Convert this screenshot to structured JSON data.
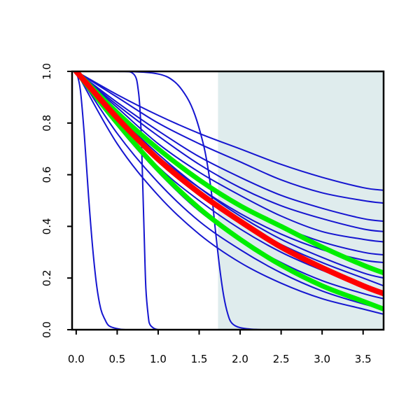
{
  "chart_data": {
    "type": "line",
    "title": "",
    "xlabel": "",
    "ylabel": "",
    "xlim": [
      -0.05,
      3.75
    ],
    "ylim": [
      0.0,
      1.0
    ],
    "x_ticks": [
      "0.0",
      "0.5",
      "1.0",
      "1.5",
      "2.0",
      "2.5",
      "3.0",
      "3.5"
    ],
    "y_ticks": [
      "0.0",
      "0.2",
      "0.4",
      "0.6",
      "0.8",
      "1.0"
    ],
    "grid": false,
    "legend": "none",
    "shaded_region": {
      "x_start": 1.73,
      "x_end": 3.75,
      "color": "#dfeced"
    },
    "colors": {
      "blue": "#1515d0",
      "red": "#ff0000",
      "green": "#00ee00",
      "shade": "#dfeced"
    },
    "series": [
      {
        "color": "#1515d0",
        "x": [
          0,
          0.05,
          0.1,
          0.15,
          0.2,
          0.25,
          0.3,
          0.35,
          0.4,
          0.5,
          0.6,
          0.8
        ],
        "y": [
          1.0,
          0.93,
          0.75,
          0.52,
          0.32,
          0.17,
          0.08,
          0.04,
          0.015,
          0.004,
          0.0,
          0.0
        ]
      },
      {
        "color": "#1515d0",
        "x": [
          0,
          0.5,
          0.7,
          0.76,
          0.79,
          0.81,
          0.83,
          0.85,
          0.88,
          0.9,
          0.95,
          1.0
        ],
        "y": [
          1.0,
          1.0,
          0.99,
          0.92,
          0.78,
          0.58,
          0.36,
          0.16,
          0.05,
          0.02,
          0.005,
          0.0
        ]
      },
      {
        "color": "#1515d0",
        "x": [
          0,
          0.6,
          1.0,
          1.2,
          1.35,
          1.45,
          1.55,
          1.6,
          1.65,
          1.7,
          1.75,
          1.8,
          1.85,
          1.9,
          2.0,
          2.2,
          2.5,
          3.75
        ],
        "y": [
          1.0,
          1.0,
          0.99,
          0.96,
          0.9,
          0.83,
          0.72,
          0.64,
          0.53,
          0.38,
          0.24,
          0.13,
          0.06,
          0.025,
          0.008,
          0.001,
          0.0,
          0.0
        ]
      },
      {
        "color": "#1515d0",
        "x": [
          0,
          0.5,
          1.0,
          1.5,
          2.0,
          2.5,
          3.0,
          3.5,
          3.75
        ],
        "y": [
          1.0,
          0.91,
          0.83,
          0.76,
          0.7,
          0.64,
          0.59,
          0.55,
          0.54
        ]
      },
      {
        "color": "#1515d0",
        "x": [
          0,
          0.5,
          1.0,
          1.5,
          2.0,
          2.5,
          3.0,
          3.5,
          3.75
        ],
        "y": [
          1.0,
          0.9,
          0.8,
          0.72,
          0.65,
          0.58,
          0.53,
          0.5,
          0.49
        ]
      },
      {
        "color": "#1515d0",
        "x": [
          0,
          0.5,
          1.0,
          1.5,
          2.0,
          2.5,
          3.0,
          3.5,
          3.75
        ],
        "y": [
          1.0,
          0.88,
          0.77,
          0.67,
          0.59,
          0.52,
          0.47,
          0.43,
          0.42
        ]
      },
      {
        "color": "#1515d0",
        "x": [
          0,
          0.5,
          1.0,
          1.5,
          2.0,
          2.5,
          3.0,
          3.5,
          3.75
        ],
        "y": [
          1.0,
          0.87,
          0.75,
          0.64,
          0.55,
          0.48,
          0.43,
          0.39,
          0.38
        ]
      },
      {
        "color": "#1515d0",
        "x": [
          0,
          0.5,
          1.0,
          1.5,
          2.0,
          2.5,
          3.0,
          3.5,
          3.75
        ],
        "y": [
          1.0,
          0.86,
          0.72,
          0.61,
          0.52,
          0.44,
          0.38,
          0.35,
          0.34
        ]
      },
      {
        "color": "#1515d0",
        "x": [
          0,
          0.5,
          1.0,
          1.5,
          2.0,
          2.5,
          3.0,
          3.5,
          3.75
        ],
        "y": [
          1.0,
          0.84,
          0.7,
          0.58,
          0.48,
          0.4,
          0.34,
          0.3,
          0.29
        ]
      },
      {
        "color": "#1515d0",
        "x": [
          0,
          0.5,
          1.0,
          1.5,
          2.0,
          2.5,
          3.0,
          3.5,
          3.75
        ],
        "y": [
          1.0,
          0.82,
          0.67,
          0.55,
          0.45,
          0.37,
          0.31,
          0.27,
          0.26
        ]
      },
      {
        "color": "#1515d0",
        "x": [
          0,
          0.5,
          1.0,
          1.5,
          2.0,
          2.5,
          3.0,
          3.5,
          3.75
        ],
        "y": [
          1.0,
          0.83,
          0.68,
          0.55,
          0.44,
          0.35,
          0.28,
          0.22,
          0.2
        ]
      },
      {
        "color": "#1515d0",
        "x": [
          0,
          0.5,
          1.0,
          1.5,
          2.0,
          2.5,
          3.0,
          3.5,
          3.75
        ],
        "y": [
          1.0,
          0.82,
          0.66,
          0.53,
          0.42,
          0.33,
          0.26,
          0.2,
          0.17
        ]
      },
      {
        "color": "#1515d0",
        "x": [
          0,
          0.5,
          1.0,
          1.5,
          2.0,
          2.5,
          3.0,
          3.5,
          3.75
        ],
        "y": [
          1.0,
          0.8,
          0.63,
          0.5,
          0.39,
          0.3,
          0.23,
          0.17,
          0.14
        ]
      },
      {
        "color": "#1515d0",
        "x": [
          0,
          0.5,
          1.0,
          1.5,
          2.0,
          2.5,
          3.0,
          3.5,
          3.75
        ],
        "y": [
          1.0,
          0.79,
          0.61,
          0.46,
          0.35,
          0.26,
          0.19,
          0.14,
          0.12
        ]
      },
      {
        "color": "#1515d0",
        "x": [
          0,
          0.5,
          1.0,
          1.5,
          2.0,
          2.5,
          3.0,
          3.5,
          3.75
        ],
        "y": [
          1.0,
          0.76,
          0.57,
          0.42,
          0.31,
          0.22,
          0.15,
          0.1,
          0.08
        ]
      },
      {
        "color": "#1515d0",
        "x": [
          0,
          0.5,
          1.0,
          1.5,
          2.0,
          2.5,
          3.0,
          3.5,
          3.75
        ],
        "y": [
          1.0,
          0.72,
          0.52,
          0.37,
          0.26,
          0.18,
          0.12,
          0.08,
          0.06
        ]
      },
      {
        "color": "#00ee00",
        "width": 7,
        "x": [
          0,
          0.5,
          1.0,
          1.5,
          2.0,
          2.5,
          3.0,
          3.5,
          3.75
        ],
        "y": [
          1.0,
          0.84,
          0.7,
          0.58,
          0.48,
          0.4,
          0.32,
          0.25,
          0.22
        ]
      },
      {
        "color": "#00ee00",
        "width": 7,
        "x": [
          0,
          0.5,
          1.0,
          1.5,
          2.0,
          2.5,
          3.0,
          3.5,
          3.75
        ],
        "y": [
          1.0,
          0.8,
          0.62,
          0.47,
          0.35,
          0.25,
          0.17,
          0.11,
          0.08
        ]
      },
      {
        "color": "#ff0000",
        "width": 8,
        "x": [
          0,
          0.5,
          1.0,
          1.5,
          2.0,
          2.5,
          3.0,
          3.5,
          3.75
        ],
        "y": [
          1.0,
          0.82,
          0.66,
          0.53,
          0.42,
          0.32,
          0.24,
          0.17,
          0.14
        ]
      }
    ]
  }
}
